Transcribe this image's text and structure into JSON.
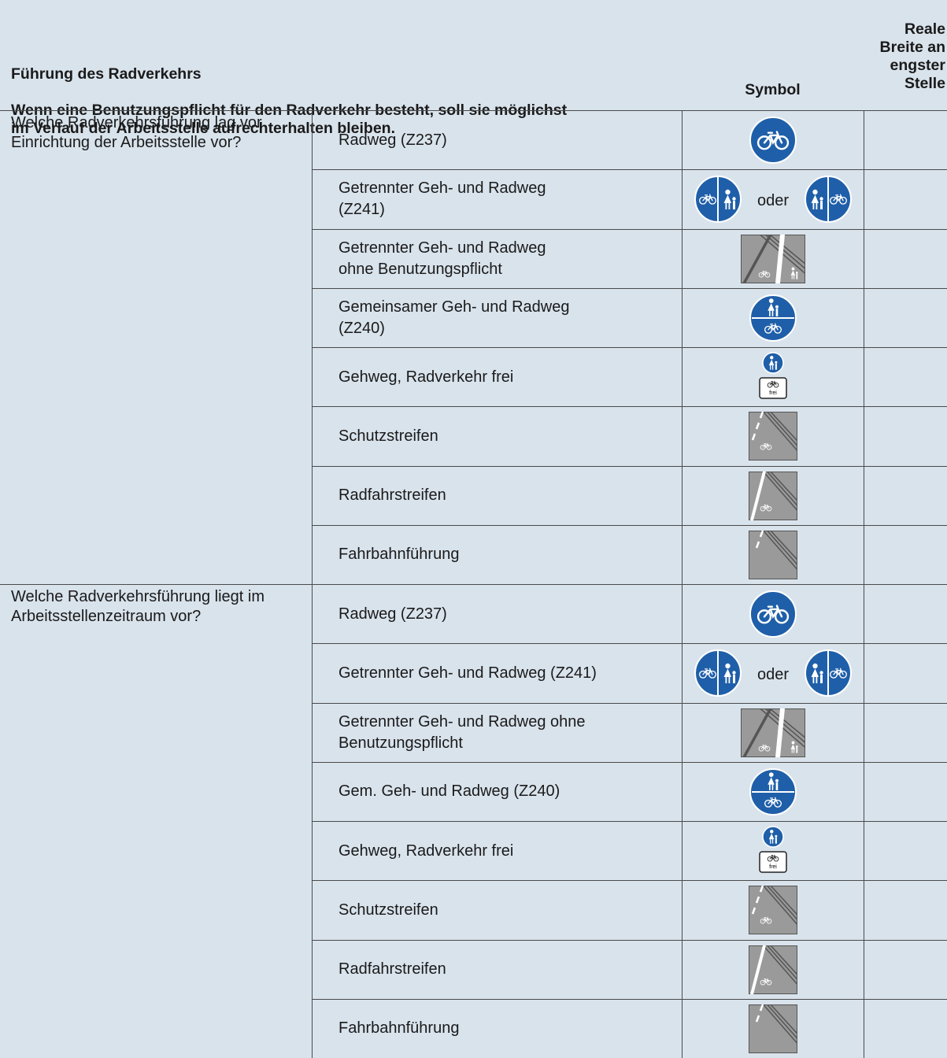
{
  "header": {
    "title": "Führung des Radverkehrs",
    "subtitle": "Wenn eine Benutzungspflicht für den Radverkehr besteht, soll sie möglichst\nim Verlauf der Arbeitsstelle aufrechterhalten bleiben.",
    "symbol": "Symbol",
    "width": "Reale\nBreite an\nengster\nStelle"
  },
  "sections": [
    {
      "question": "Welche Radverkehrsführung lag vor\nEinrichtung der Arbeitsstelle vor?",
      "rows": [
        {
          "label": "Radweg (Z237)"
        },
        {
          "label": "Getrennter Geh- und Radweg\n(Z241)",
          "symbol_text": "oder"
        },
        {
          "label": "Getrennter Geh- und Radweg\nohne Benutzungspflicht"
        },
        {
          "label": "Gemeinsamer Geh- und Radweg\n(Z240)"
        },
        {
          "label": "Gehweg, Radverkehr frei",
          "sign_text": "frei"
        },
        {
          "label": "Schutzstreifen"
        },
        {
          "label": "Radfahrstreifen"
        },
        {
          "label": "Fahrbahnführung"
        }
      ]
    },
    {
      "question": "Welche Radverkehrsführung liegt im\nArbeitsstellenzeitraum vor?",
      "rows": [
        {
          "label": "Radweg (Z237)"
        },
        {
          "label": "Getrennter Geh- und Radweg (Z241)",
          "symbol_text": "oder"
        },
        {
          "label": "Getrennter Geh- und Radweg ohne\nBenutzungspflicht"
        },
        {
          "label": "Gem. Geh- und Radweg (Z240)"
        },
        {
          "label": "Gehweg, Radverkehr frei",
          "sign_text": "frei"
        },
        {
          "label": "Schutzstreifen"
        },
        {
          "label": "Radfahrstreifen"
        },
        {
          "label": "Fahrbahnführung"
        }
      ]
    }
  ]
}
